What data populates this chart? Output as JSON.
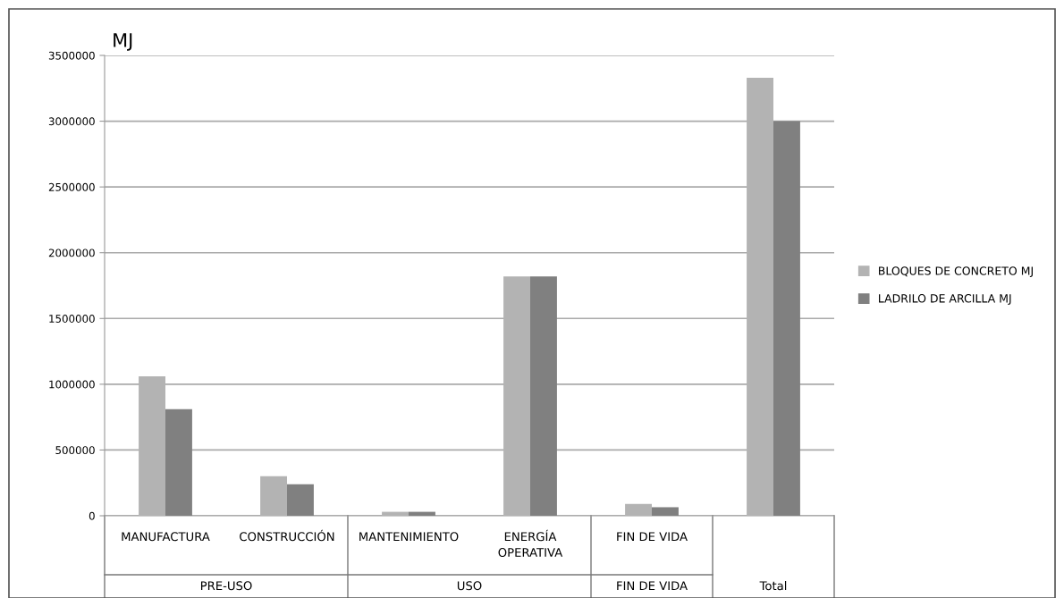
{
  "chart_data": {
    "type": "bar",
    "ylabel": "MJ",
    "categories": [
      "MANUFACTURA",
      "CONSTRUCCIÓN",
      "MANTENIMIENTO",
      "ENERGÍA\nOPERATIVA",
      "FIN DE VIDA",
      null
    ],
    "annotations": [
      "PRE-USO",
      "USO",
      "FIN DE VIDA",
      "Total"
    ],
    "series": [
      {
        "name": "BLOQUES DE CONCRETO MJ",
        "color": "#b3b3b3",
        "values": [
          1060000,
          300000,
          30000,
          1820000,
          90000,
          3330000
        ]
      },
      {
        "name": "LADRILO DE ARCILLA MJ",
        "color": "#808080",
        "values": [
          810000,
          240000,
          30000,
          1820000,
          65000,
          3000000
        ]
      }
    ],
    "ylim": [
      0,
      3500000
    ],
    "yticks": [
      0,
      500000,
      1000000,
      1500000,
      2000000,
      2500000,
      3000000,
      3500000
    ],
    "grid": "y",
    "legend": "right"
  }
}
